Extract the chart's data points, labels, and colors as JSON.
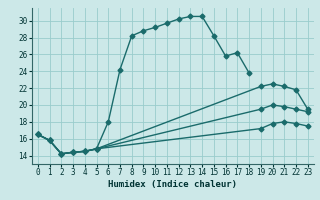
{
  "xlabel": "Humidex (Indice chaleur)",
  "bg_color": "#cce8e8",
  "grid_color": "#99cccc",
  "line_color": "#1a6b6b",
  "xlim": [
    -0.5,
    23.5
  ],
  "ylim": [
    13.0,
    31.5
  ],
  "yticks": [
    14,
    16,
    18,
    20,
    22,
    24,
    26,
    28,
    30
  ],
  "xticks": [
    0,
    1,
    2,
    3,
    4,
    5,
    6,
    7,
    8,
    9,
    10,
    11,
    12,
    13,
    14,
    15,
    16,
    17,
    18,
    19,
    20,
    21,
    22,
    23
  ],
  "curve1_x": [
    0,
    1,
    2,
    3,
    4,
    5,
    6,
    7,
    8,
    9,
    10,
    11,
    12,
    13,
    14,
    15,
    16,
    17,
    18
  ],
  "curve1_y": [
    16.5,
    15.8,
    14.2,
    14.4,
    14.5,
    14.8,
    18.0,
    24.2,
    28.2,
    28.8,
    29.2,
    29.7,
    30.2,
    30.5,
    30.5,
    28.2,
    25.8,
    26.2,
    23.8
  ],
  "curve2_x": [
    0,
    1,
    2,
    3,
    4,
    5,
    19,
    20,
    21,
    22,
    23
  ],
  "curve2_y": [
    16.5,
    15.8,
    14.2,
    14.4,
    14.5,
    14.8,
    22.2,
    22.5,
    22.2,
    21.8,
    19.5
  ],
  "curve3_x": [
    0,
    1,
    2,
    3,
    4,
    5,
    19,
    20,
    21,
    22,
    23
  ],
  "curve3_y": [
    16.5,
    15.8,
    14.2,
    14.4,
    14.5,
    14.8,
    19.5,
    20.0,
    19.8,
    19.5,
    19.2
  ],
  "curve4_x": [
    0,
    1,
    2,
    3,
    4,
    5,
    19,
    20,
    21,
    22,
    23
  ],
  "curve4_y": [
    16.5,
    15.8,
    14.2,
    14.4,
    14.5,
    14.8,
    17.2,
    17.8,
    18.0,
    17.8,
    17.5
  ]
}
